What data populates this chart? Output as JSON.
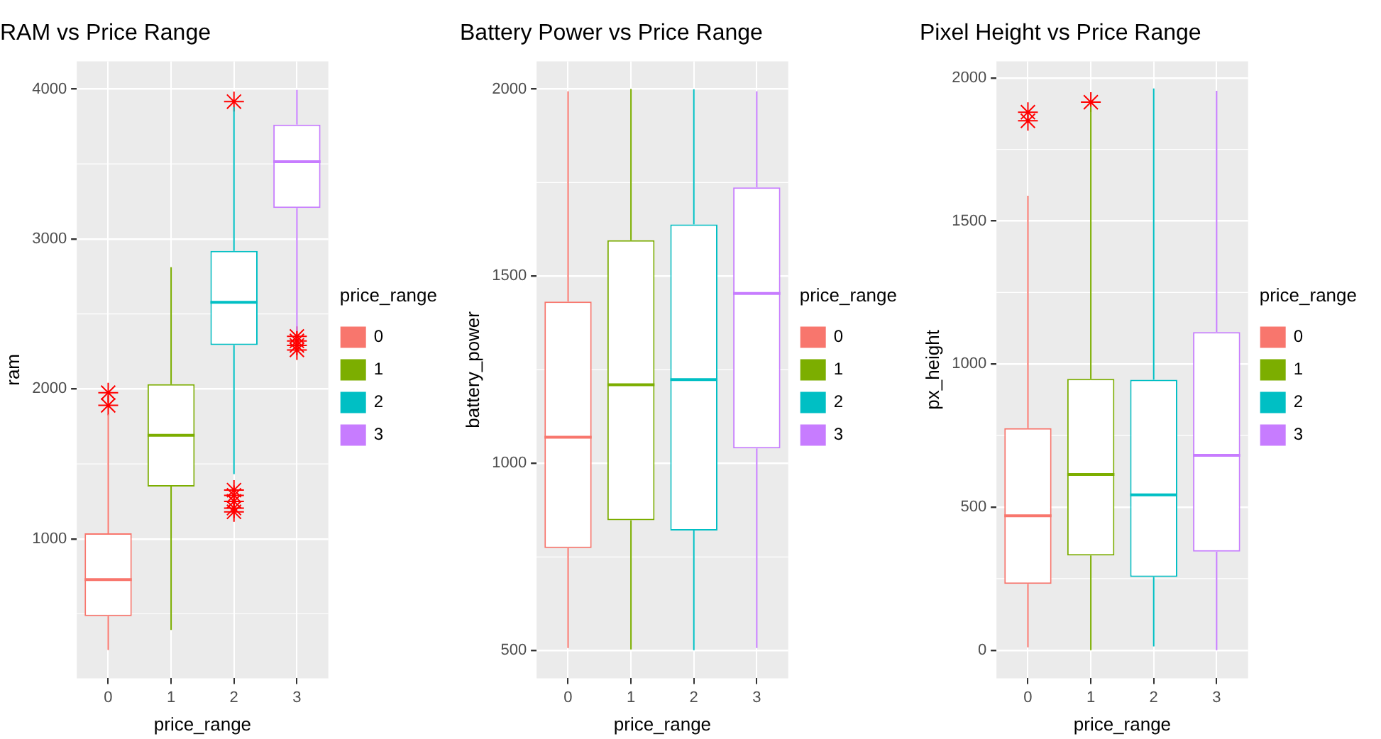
{
  "chart_data": [
    {
      "type": "box",
      "title": "RAM vs Price Range",
      "xlabel": "price_range",
      "ylabel": "ram",
      "legend_title": "price_range",
      "legend": "right",
      "grid": true,
      "marker": "star",
      "categories": [
        "0",
        "1",
        "2",
        "3"
      ],
      "ylim": [
        70,
        4185
      ],
      "yticks": [
        1000,
        2000,
        3000,
        4000
      ],
      "series": [
        {
          "name": "0",
          "color": "#f8766d",
          "boxes": [
            {
              "low": 259,
              "q1": 485,
              "median": 728,
              "q3": 1037,
              "high": 1830,
              "outliers": [
                1975,
                1890
              ]
            },
            null,
            null,
            null
          ]
        },
        {
          "name": "1",
          "color": "#7cae00",
          "boxes": [
            null,
            {
              "low": 392,
              "q1": 1349,
              "median": 1691,
              "q3": 2031,
              "high": 2812
            },
            null,
            null
          ]
        },
        {
          "name": "2",
          "color": "#00bfc4",
          "boxes": [
            null,
            null,
            {
              "low": 1432,
              "q1": 2293,
              "median": 2577,
              "q3": 2920,
              "high": 3880,
              "outliers": [
                3916,
                1325,
                1290,
                1250,
                1205,
                1180
              ]
            },
            null
          ]
        },
        {
          "name": "3",
          "color": "#c77cff",
          "boxes": [
            null,
            null,
            null,
            {
              "low": 2386,
              "q1": 3207,
              "median": 3515,
              "q3": 3762,
              "high": 3994,
              "outliers": [
                2350,
                2320,
                2290,
                2260
              ]
            }
          ]
        }
      ]
    },
    {
      "type": "box",
      "title": "Battery Power vs Price Range",
      "xlabel": "price_range",
      "ylabel": "battery_power",
      "legend_title": "price_range",
      "legend": "right",
      "grid": true,
      "categories": [
        "0",
        "1",
        "2",
        "3"
      ],
      "ylim": [
        426,
        2074
      ],
      "yticks": [
        500,
        1000,
        1500,
        2000
      ],
      "series": [
        {
          "name": "0",
          "color": "#f8766d",
          "boxes": [
            {
              "low": 507,
              "q1": 774,
              "median": 1070,
              "q3": 1432,
              "high": 1994
            },
            null,
            null,
            null
          ]
        },
        {
          "name": "1",
          "color": "#7cae00",
          "boxes": [
            null,
            {
              "low": 503,
              "q1": 848,
              "median": 1210,
              "q3": 1596,
              "high": 2000
            },
            null,
            null
          ]
        },
        {
          "name": "2",
          "color": "#00bfc4",
          "boxes": [
            null,
            null,
            {
              "low": 501,
              "q1": 821,
              "median": 1224,
              "q3": 1638,
              "high": 1999
            },
            null
          ]
        },
        {
          "name": "3",
          "color": "#c77cff",
          "boxes": [
            null,
            null,
            null,
            {
              "low": 507,
              "q1": 1040,
              "median": 1454,
              "q3": 1737,
              "high": 1994
            }
          ]
        }
      ]
    },
    {
      "type": "box",
      "title": "Pixel Height vs Price Range",
      "xlabel": "price_range",
      "ylabel": "px_height",
      "legend_title": "price_range",
      "legend": "right",
      "grid": true,
      "marker": "star",
      "categories": [
        "0",
        "1",
        "2",
        "3"
      ],
      "ylim": [
        -98,
        2058
      ],
      "yticks": [
        0,
        500,
        1000,
        1500,
        2000
      ],
      "series": [
        {
          "name": "0",
          "color": "#f8766d",
          "boxes": [
            {
              "low": 10,
              "q1": 232,
              "median": 470,
              "q3": 776,
              "high": 1588,
              "outliers": [
                1880,
                1850
              ]
            },
            null,
            null,
            null
          ]
        },
        {
          "name": "1",
          "color": "#7cae00",
          "boxes": [
            null,
            {
              "low": 0,
              "q1": 331,
              "median": 614,
              "q3": 948,
              "high": 1900,
              "outliers": [
                1915
              ]
            },
            null,
            null
          ]
        },
        {
          "name": "2",
          "color": "#00bfc4",
          "boxes": [
            null,
            null,
            {
              "low": 13,
              "q1": 256,
              "median": 543,
              "q3": 945,
              "high": 1963
            },
            null
          ]
        },
        {
          "name": "3",
          "color": "#c77cff",
          "boxes": [
            null,
            null,
            null,
            {
              "low": 0,
              "q1": 345,
              "median": 681,
              "q3": 1112,
              "high": 1955
            }
          ]
        }
      ]
    }
  ]
}
